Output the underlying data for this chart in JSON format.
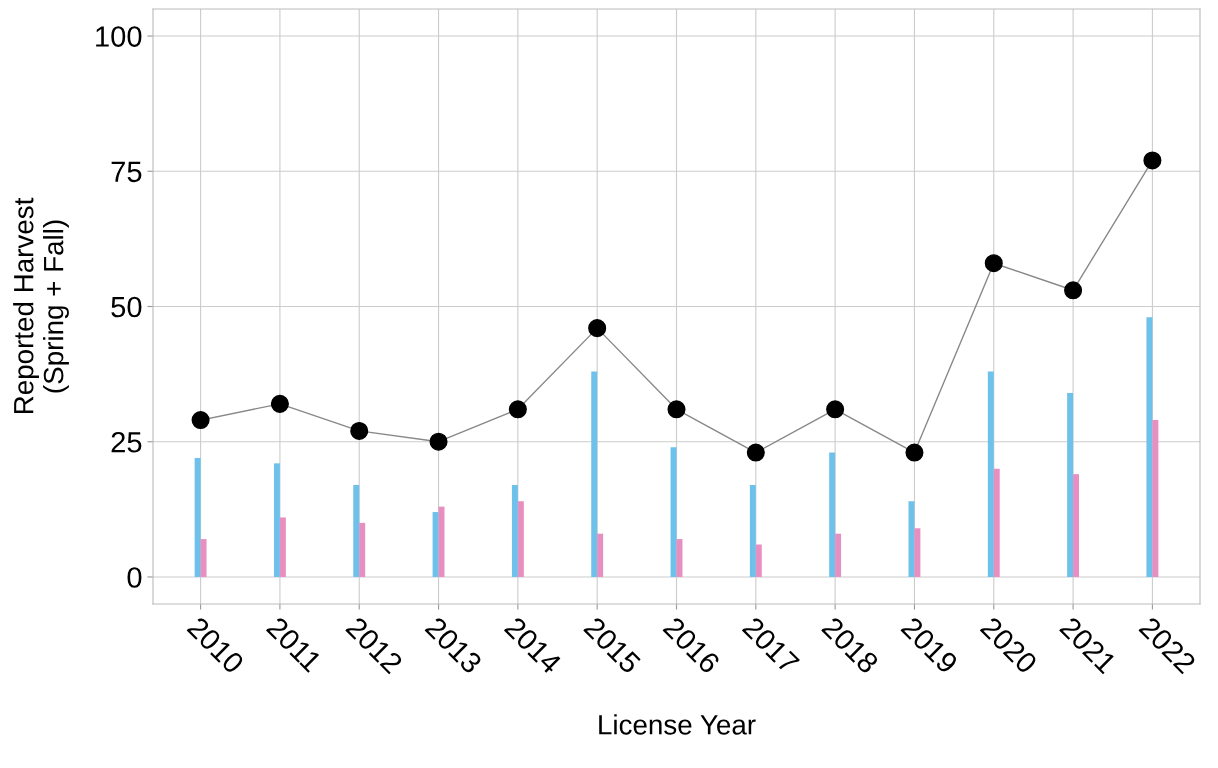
{
  "chart_data": {
    "type": "bar",
    "xlabel": "License Year",
    "ylabel": "Reported Harvest\n(Spring + Fall)",
    "categories": [
      "2010",
      "2011",
      "2012",
      "2013",
      "2014",
      "2015",
      "2016",
      "2017",
      "2018",
      "2019",
      "2020",
      "2021",
      "2022"
    ],
    "series": [
      {
        "color": "#6ec1ea",
        "values": [
          22,
          21,
          17,
          12,
          17,
          38,
          24,
          17,
          23,
          14,
          38,
          34,
          48
        ]
      },
      {
        "color": "#e68fc0",
        "values": [
          7,
          11,
          10,
          13,
          14,
          8,
          7,
          6,
          8,
          9,
          20,
          19,
          29
        ]
      },
      {
        "type": "line",
        "color": "#000000",
        "values": [
          29,
          32,
          27,
          25,
          31,
          46,
          31,
          23,
          31,
          23,
          58,
          53,
          77
        ]
      }
    ],
    "ylim": [
      -5,
      105
    ],
    "yticks": [
      0,
      25,
      50,
      75,
      100
    ],
    "grid": true,
    "marker": "circle",
    "line_style": "solid"
  }
}
